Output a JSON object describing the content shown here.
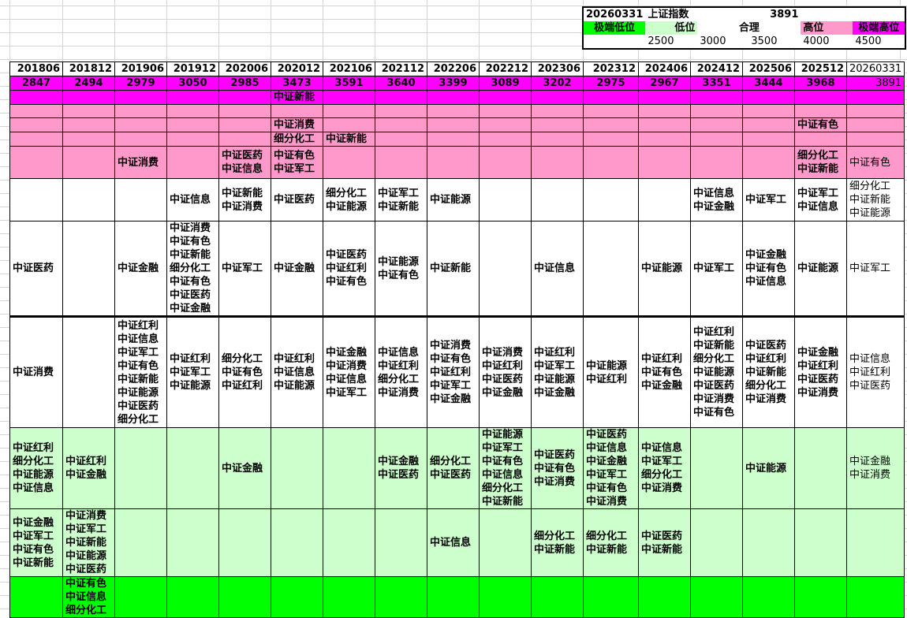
{
  "colors": {
    "extreme_high": "#ff00ff",
    "high": "#ff99cc",
    "reasonable": "#ffffff",
    "low": "#ccffcc",
    "extreme_low": "#00ff00"
  },
  "summary": {
    "date": "20260331",
    "index_name": "上证指数",
    "index_value": "3891",
    "levels": [
      {
        "label": "极端低位",
        "color": "#00ff00",
        "threshold": ""
      },
      {
        "label": "低位",
        "color": "#ccffcc",
        "threshold": "2500"
      },
      {
        "label": "合理",
        "color": "#ffffff",
        "threshold": "3000"
      },
      {
        "label": "",
        "color": "#ffffff",
        "threshold": "3500"
      },
      {
        "label": "高位",
        "color": "#ff99cc",
        "threshold": "4000"
      },
      {
        "label": "极端高位",
        "color": "#ff00ff",
        "threshold": "4500"
      }
    ]
  },
  "table": {
    "periods": [
      "201806",
      "201812",
      "201906",
      "201912",
      "202006",
      "202012",
      "202106",
      "202112",
      "202206",
      "202212",
      "202306",
      "202312",
      "202406",
      "202412",
      "202506",
      "202512",
      "20260331"
    ],
    "index_values": [
      "2847",
      "2494",
      "2979",
      "3050",
      "2985",
      "3473",
      "3591",
      "3640",
      "3399",
      "3089",
      "3202",
      "2975",
      "2967",
      "3351",
      "3444",
      "3968",
      "3891"
    ],
    "rows": [
      {
        "band": "extreme_high",
        "cells": {
          "5": [
            "中证新能"
          ]
        }
      },
      {
        "band": "high",
        "cells": {}
      },
      {
        "band": "high",
        "cells": {
          "5": [
            "中证消费"
          ],
          "15": [
            "中证有色"
          ]
        }
      },
      {
        "band": "high",
        "cells": {
          "5": [
            "细分化工"
          ],
          "6": [
            "中证新能"
          ]
        }
      },
      {
        "band": "high",
        "cells": {
          "2": [
            "中证消费"
          ],
          "4": [
            "中证医药",
            "中证信息"
          ],
          "5": [
            "中证有色",
            "中证军工"
          ],
          "15": [
            "细分化工",
            "中证新能"
          ],
          "16": [
            "中证有色"
          ]
        }
      },
      {
        "band": "reasonable",
        "cells": {
          "3": [
            "中证信息"
          ],
          "4": [
            "中证新能",
            "中证消费"
          ],
          "5": [
            "中证医药"
          ],
          "6": [
            "细分化工",
            "中证能源"
          ],
          "7": [
            "中证军工",
            "中证新能"
          ],
          "8": [
            "中证能源"
          ],
          "13": [
            "中证信息",
            "中证金融"
          ],
          "14": [
            "中证军工"
          ],
          "15": [
            "中证军工",
            "中证信息"
          ],
          "16": [
            "细分化工",
            "中证新能",
            "中证能源"
          ]
        }
      },
      {
        "band": "reasonable",
        "cells": {
          "0": [
            "中证医药"
          ],
          "2": [
            "中证金融"
          ],
          "3": [
            "中证消费",
            "中证有色",
            "中证新能",
            "细分化工",
            "中证有色",
            "中证医药",
            "中证金融"
          ],
          "4": [
            "中证军工"
          ],
          "5": [
            "中证金融"
          ],
          "6": [
            "中证医药",
            "中证红利",
            "中证有色"
          ],
          "7": [
            "中证能源",
            "中证有色"
          ],
          "8": [
            "中证新能"
          ],
          "10": [
            "中证信息"
          ],
          "12": [
            "中证能源"
          ],
          "13": [
            "中证军工"
          ],
          "14": [
            "中证金融",
            "中证有色",
            "中证信息"
          ],
          "15": [
            "中证能源"
          ],
          "16": [
            "中证军工"
          ]
        }
      },
      {
        "band": "reasonable",
        "thick": true,
        "cells": {
          "0": [
            "中证消费"
          ],
          "2": [
            "中证红利",
            "中证信息",
            "中证军工",
            "中证有色",
            "中证新能",
            "中证能源",
            "中证医药",
            "细分化工"
          ],
          "3": [
            "中证红利",
            "中证军工",
            "中证能源"
          ],
          "4": [
            "细分化工",
            "中证有色",
            "中证红利"
          ],
          "5": [
            "中证红利",
            "中证信息",
            "中证能源"
          ],
          "6": [
            "中证金融",
            "中证消费",
            "中证信息",
            "中证军工"
          ],
          "7": [
            "中证信息",
            "中证红利",
            "细分化工",
            "中证消费"
          ],
          "8": [
            "中证消费",
            "中证有色",
            "中证红利",
            "中证军工",
            "中证金融"
          ],
          "9": [
            "中证消费",
            "中证红利",
            "中证医药",
            "中证金融"
          ],
          "10": [
            "中证红利",
            "中证军工",
            "中证能源",
            "中证金融"
          ],
          "11": [
            "中证能源",
            "中证红利"
          ],
          "12": [
            "中证红利",
            "中证有色",
            "中证金融"
          ],
          "13": [
            "中证红利",
            "中证新能",
            "细分化工",
            "中证能源",
            "中证医药",
            "中证消费",
            "中证有色"
          ],
          "14": [
            "中证医药",
            "中证红利",
            "中证新能",
            "细分化工",
            "中证消费"
          ],
          "15": [
            "中证金融",
            "中证红利",
            "中证医药",
            "中证消费"
          ],
          "16": [
            "中证信息",
            "中证红利",
            "中证医药"
          ]
        }
      },
      {
        "band": "low",
        "cells": {
          "0": [
            "中证红利",
            "细分化工",
            "中证能源",
            "中证信息"
          ],
          "1": [
            "中证红利",
            "中证金融"
          ],
          "4": [
            "中证金融"
          ],
          "7": [
            "中证金融",
            "中证医药"
          ],
          "8": [
            "细分化工",
            "中证医药"
          ],
          "9": [
            "中证能源",
            "中证军工",
            "中证有色",
            "中证信息",
            "细分化工",
            "中证新能"
          ],
          "10": [
            "中证医药",
            "中证有色",
            "中证消费"
          ],
          "11": [
            "中证医药",
            "中证信息",
            "中证金融",
            "中证军工",
            "中证有色",
            "中证消费"
          ],
          "12": [
            "中证信息",
            "中证军工",
            "细分化工",
            "中证消费"
          ],
          "14": [
            "中证能源"
          ],
          "16": [
            "中证金融",
            "中证消费"
          ]
        }
      },
      {
        "band": "low",
        "cells": {
          "0": [
            "中证金融",
            "中证军工",
            "中证有色",
            "中证新能"
          ],
          "1": [
            "中证消费",
            "中证军工",
            "中证新能",
            "中证能源",
            "中证医药"
          ],
          "8": [
            "中证信息"
          ],
          "10": [
            "细分化工",
            "中证新能"
          ],
          "11": [
            "细分化工",
            "中证新能"
          ],
          "12": [
            "中证医药",
            "中证新能"
          ]
        }
      },
      {
        "band": "extreme_low",
        "cells": {
          "1": [
            "中证有色",
            "中证信息",
            "细分化工"
          ]
        }
      }
    ]
  }
}
